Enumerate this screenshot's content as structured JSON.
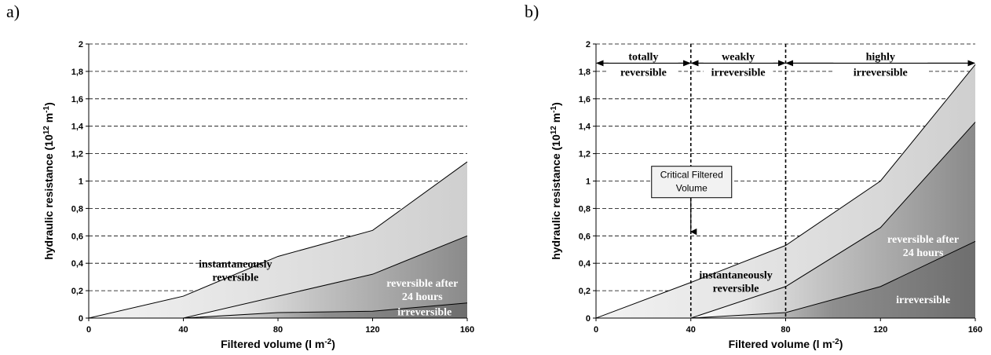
{
  "chart_data": [
    {
      "type": "area",
      "panel_label": "a)",
      "x": [
        0,
        40,
        80,
        120,
        160
      ],
      "series": [
        {
          "name": "instantaneously reversible",
          "values": [
            0,
            0.16,
            0.45,
            0.64,
            1.14
          ]
        },
        {
          "name": "reversible after 24 hours",
          "values": [
            null,
            0,
            0.16,
            0.32,
            0.6
          ]
        },
        {
          "name": "irreversible",
          "values": [
            null,
            0,
            0.04,
            0.05,
            0.11
          ]
        }
      ],
      "xlabel": "Filtered volume (l m-2)",
      "ylabel": "hydraulic resistance (10^12 m-1)",
      "xlim": [
        0,
        160
      ],
      "ylim": [
        0,
        2
      ],
      "xticks": [
        "0",
        "40",
        "80",
        "120",
        "160"
      ],
      "yticks": [
        "0",
        "0,2",
        "0,4",
        "0,6",
        "0,8",
        "1",
        "1,2",
        "1,4",
        "1,6",
        "1,8",
        "2"
      ],
      "grid": "horizontal dashed",
      "colors": {
        "instantaneously reversible": "#e0e0e0",
        "reversible after 24 hours": "#9a9a9a",
        "irreversible": "#777777"
      }
    },
    {
      "type": "area",
      "panel_label": "b)",
      "x": [
        0,
        40,
        80,
        120,
        160
      ],
      "series": [
        {
          "name": "instantaneously reversible",
          "values": [
            0,
            0.26,
            0.53,
            1.0,
            1.85
          ]
        },
        {
          "name": "reversible after 24 hours",
          "values": [
            null,
            0,
            0.23,
            0.66,
            1.43
          ]
        },
        {
          "name": "irreversible",
          "values": [
            null,
            0,
            0.04,
            0.23,
            0.56
          ]
        }
      ],
      "xlabel": "Filtered volume (l m-2)",
      "ylabel": "hydraulic resistance (10^12 m-1)",
      "xlim": [
        0,
        160
      ],
      "ylim": [
        0,
        2
      ],
      "xticks": [
        "0",
        "40",
        "80",
        "120",
        "160"
      ],
      "yticks": [
        "0",
        "0,2",
        "0,4",
        "0,6",
        "0,8",
        "1",
        "1,2",
        "1,4",
        "1,6",
        "1,8",
        "2"
      ],
      "grid": "horizontal dashed",
      "zones": [
        {
          "from": 0,
          "to": 40,
          "line1": "totally",
          "line2": "reversible"
        },
        {
          "from": 40,
          "to": 80,
          "line1": "weakly",
          "line2": "irreversible"
        },
        {
          "from": 80,
          "to": 160,
          "line1": "highly",
          "line2": "irreversible"
        }
      ],
      "vertical_markers": [
        40,
        80
      ],
      "annotation": {
        "line1": "Critical Filtered",
        "line2": "Volume",
        "points_to_x": 40
      },
      "colors": {
        "instantaneously reversible": "#e0e0e0",
        "reversible after 24 hours": "#9a9a9a",
        "irreversible": "#777777"
      }
    }
  ]
}
